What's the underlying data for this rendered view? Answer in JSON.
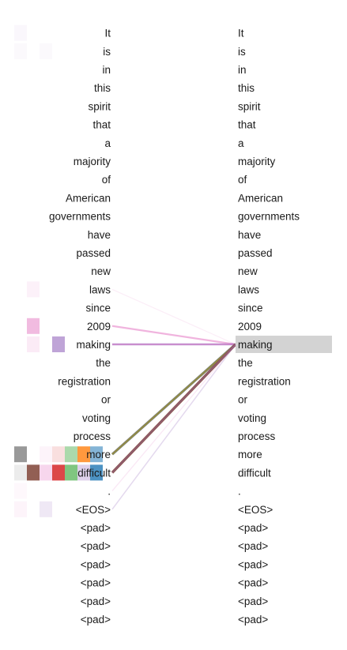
{
  "tokens": [
    "It",
    "is",
    "in",
    "this",
    "spirit",
    "that",
    "a",
    "majority",
    "of",
    "American",
    "governments",
    "have",
    "passed",
    "new",
    "laws",
    "since",
    "2009",
    "making",
    "the",
    "registration",
    "or",
    "voting",
    "process",
    "more",
    "difficult",
    ".",
    "<EOS>",
    "<pad>",
    "<pad>",
    "<pad>",
    "<pad>",
    "<pad>",
    "<pad>"
  ],
  "selected_token_index": 17,
  "highlight_color": "#d3d3d3",
  "head_colors": [
    "#7f7f7f",
    "#e377c2",
    "#8c564b",
    "#9467bd",
    "#d62728",
    "#2ca02c",
    "#ff7f0e",
    "#1f77b4"
  ],
  "attention_lines": [
    {
      "from": 14,
      "head": 1,
      "weight": 0.08
    },
    {
      "from": 16,
      "head": 1,
      "weight": 0.5
    },
    {
      "from": 17,
      "head": 3,
      "weight": 0.6
    },
    {
      "from": 17,
      "head": 1,
      "weight": 0.35
    },
    {
      "from": 23,
      "head": 0,
      "weight": 0.9
    },
    {
      "from": 23,
      "head": 5,
      "weight": 0.4
    },
    {
      "from": 23,
      "head": 6,
      "weight": 0.3
    },
    {
      "from": 24,
      "head": 2,
      "weight": 0.95
    },
    {
      "from": 24,
      "head": 3,
      "weight": 0.3
    },
    {
      "from": 25,
      "head": 1,
      "weight": 0.12
    },
    {
      "from": 26,
      "head": 3,
      "weight": 0.2
    }
  ],
  "attention_cells": [
    {
      "row": 0,
      "col": 0,
      "head": 3,
      "weight": 0.05
    },
    {
      "row": 1,
      "col": 0,
      "head": 3,
      "weight": 0.04
    },
    {
      "row": 1,
      "col": 2,
      "head": 3,
      "weight": 0.04
    },
    {
      "row": 14,
      "col": 1,
      "head": 1,
      "weight": 0.1
    },
    {
      "row": 16,
      "col": 1,
      "head": 1,
      "weight": 0.5
    },
    {
      "row": 17,
      "col": 1,
      "head": 1,
      "weight": 0.15
    },
    {
      "row": 17,
      "col": 3,
      "head": 3,
      "weight": 0.6
    },
    {
      "row": 23,
      "col": 0,
      "head": 0,
      "weight": 0.8
    },
    {
      "row": 23,
      "col": 2,
      "head": 1,
      "weight": 0.08
    },
    {
      "row": 23,
      "col": 3,
      "head": 4,
      "weight": 0.15
    },
    {
      "row": 23,
      "col": 4,
      "head": 5,
      "weight": 0.4
    },
    {
      "row": 23,
      "col": 5,
      "head": 6,
      "weight": 0.8
    },
    {
      "row": 23,
      "col": 6,
      "head": 7,
      "weight": 0.55
    },
    {
      "row": 24,
      "col": 0,
      "head": 0,
      "weight": 0.15
    },
    {
      "row": 24,
      "col": 1,
      "head": 2,
      "weight": 0.95
    },
    {
      "row": 24,
      "col": 2,
      "head": 1,
      "weight": 0.3
    },
    {
      "row": 24,
      "col": 3,
      "head": 4,
      "weight": 0.85
    },
    {
      "row": 24,
      "col": 4,
      "head": 5,
      "weight": 0.6
    },
    {
      "row": 24,
      "col": 5,
      "head": 3,
      "weight": 0.3
    },
    {
      "row": 24,
      "col": 6,
      "head": 7,
      "weight": 0.8
    },
    {
      "row": 25,
      "col": 0,
      "head": 1,
      "weight": 0.05
    },
    {
      "row": 26,
      "col": 0,
      "head": 1,
      "weight": 0.08
    },
    {
      "row": 26,
      "col": 2,
      "head": 3,
      "weight": 0.15
    }
  ]
}
